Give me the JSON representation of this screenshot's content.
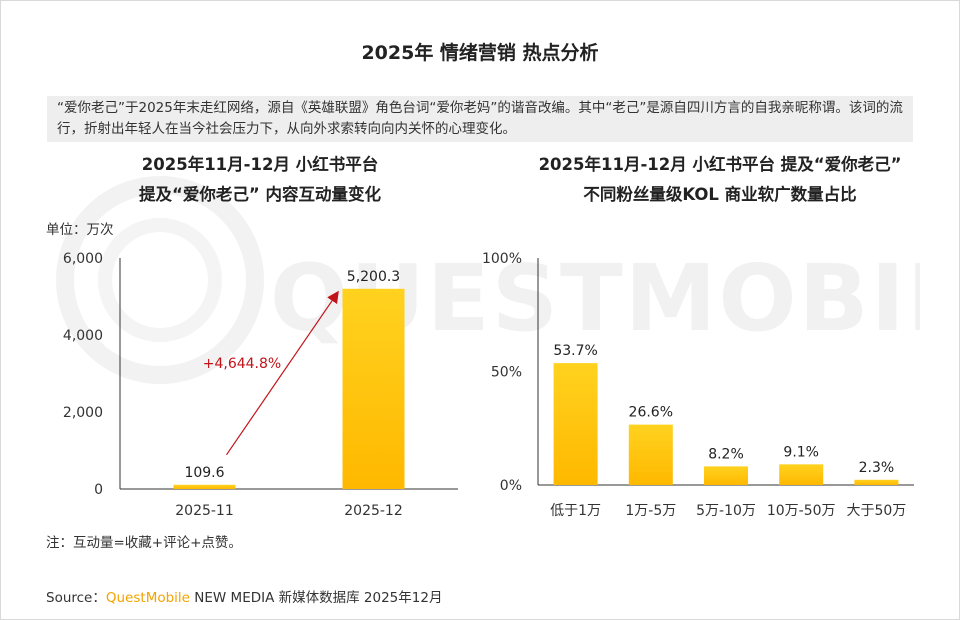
{
  "title": "2025年 情绪营销 热点分析",
  "note": "“爱你老己”于2025年末走红网络，源自《英雄联盟》角色台词“爱你老妈”的谐音改编。其中“老己”是源自四川方言的自我亲昵称谓。该词的流行，折射出年轻人在当今社会压力下，从向外求索转向向内关怀的心理变化。",
  "watermark": "QUESTMOBILE",
  "colors": {
    "bar_top": "#ffd21f",
    "bar_bottom": "#ffb800",
    "arrow": "#c0141a",
    "brand": "#f5a300"
  },
  "unit_label": "单位：万次",
  "footnote": "注：互动量=收藏+评论+点赞。",
  "source": {
    "prefix": "Source：",
    "brand": "QuestMobile",
    "rest": " NEW MEDIA 新媒体数据库 2025年12月"
  },
  "chart_data": [
    {
      "type": "bar",
      "title_line1": "2025年11月-12月 小红书平台",
      "title_line2": "提及“爱你老己” 内容互动量变化",
      "categories": [
        "2025-11",
        "2025-12"
      ],
      "values": [
        109.6,
        5200.3
      ],
      "value_labels": [
        "109.6",
        "5,200.3"
      ],
      "yticks": [
        0,
        2000,
        4000,
        6000
      ],
      "ytick_labels": [
        "0",
        "2,000",
        "4,000",
        "6,000"
      ],
      "ylim": [
        0,
        6000
      ],
      "growth_label": "+4,644.8%",
      "grid": false
    },
    {
      "type": "bar",
      "title_line1": "2025年11月-12月 小红书平台 提及“爱你老己”",
      "title_line2": "不同粉丝量级KOL 商业软广数量占比",
      "categories": [
        "低于1万",
        "1万-5万",
        "5万-10万",
        "10万-50万",
        "大于50万"
      ],
      "values": [
        53.7,
        26.6,
        8.2,
        9.1,
        2.3
      ],
      "value_labels": [
        "53.7%",
        "26.6%",
        "8.2%",
        "9.1%",
        "2.3%"
      ],
      "yticks": [
        0,
        50,
        100
      ],
      "ytick_labels": [
        "0%",
        "50%",
        "100%"
      ],
      "ylim": [
        0,
        100
      ],
      "grid": false
    }
  ]
}
